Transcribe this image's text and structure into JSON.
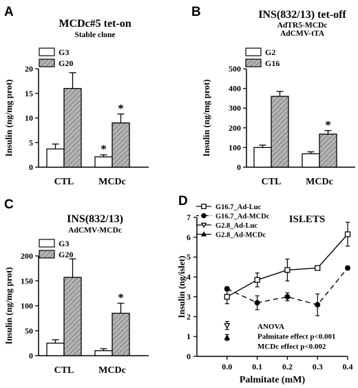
{
  "chart_data": [
    {
      "type": "bar",
      "panel": "A",
      "title": "MCDc#5 tet-on",
      "subtitle": "Stable clone",
      "ylabel": "Insulin (ng/mg prot)",
      "ylim": [
        0,
        20
      ],
      "yticks": [
        0,
        5,
        10,
        15,
        20
      ],
      "categories": [
        "CTL",
        "MCDc"
      ],
      "legend_position": "top-left",
      "series": [
        {
          "name": "G3",
          "color": "#ffffff",
          "pattern": "none",
          "values": [
            3.7,
            2.1
          ],
          "errors": [
            1.0,
            0.4
          ],
          "significant": [
            false,
            true
          ]
        },
        {
          "name": "G20",
          "color": "#a8a8a8",
          "pattern": "hatch",
          "values": [
            16.0,
            9.0
          ],
          "errors": [
            3.2,
            1.8
          ],
          "significant": [
            false,
            true
          ]
        }
      ],
      "significance_marker": "*"
    },
    {
      "type": "bar",
      "panel": "B",
      "title": "INS(832/13) tet-off",
      "subtitle_lines": [
        "AdTR5-MCDc",
        "AdCMV-tTA"
      ],
      "ylabel": "Insulin (ng/mg prot)",
      "ylim": [
        0,
        500
      ],
      "yticks": [
        0,
        100,
        200,
        300,
        400,
        500
      ],
      "categories": [
        "CTL",
        "MCDc"
      ],
      "legend_position": "top-left",
      "series": [
        {
          "name": "G2",
          "color": "#ffffff",
          "pattern": "none",
          "values": [
            100,
            68
          ],
          "errors": [
            12,
            10
          ],
          "significant": [
            false,
            false
          ]
        },
        {
          "name": "G16",
          "color": "#a8a8a8",
          "pattern": "hatch",
          "values": [
            360,
            168
          ],
          "errors": [
            25,
            18
          ],
          "significant": [
            false,
            true
          ]
        }
      ],
      "significance_marker": "*"
    },
    {
      "type": "bar",
      "panel": "C",
      "title": "INS(832/13)",
      "subtitle": "AdCMV-MCDc",
      "ylabel": "Insulin (ng/mg prot)",
      "ylim": [
        0,
        200
      ],
      "yticks": [
        0,
        50,
        100,
        150,
        200
      ],
      "categories": [
        "CTL",
        "MCDc"
      ],
      "legend_position": "top-left",
      "series": [
        {
          "name": "G3",
          "color": "#ffffff",
          "pattern": "none",
          "values": [
            25,
            10
          ],
          "errors": [
            7,
            4
          ],
          "significant": [
            false,
            false
          ]
        },
        {
          "name": "G20",
          "color": "#a8a8a8",
          "pattern": "hatch",
          "values": [
            157,
            85
          ],
          "errors": [
            37,
            20
          ],
          "significant": [
            false,
            true
          ]
        }
      ],
      "significance_marker": "*"
    },
    {
      "type": "line",
      "panel": "D",
      "title": "ISLETS",
      "xlabel": "Palmitate (mM)",
      "ylabel": "Insulin (ng/islet)",
      "xlim": [
        -0.1,
        0.4
      ],
      "xticks": [
        0.0,
        0.1,
        0.2,
        0.3,
        0.4
      ],
      "xtick_labels": [
        "0.0",
        "0.1",
        "0.2",
        "0.3",
        "0.4"
      ],
      "ylim": [
        0,
        7
      ],
      "yticks": [
        0,
        1,
        2,
        3,
        4,
        5,
        6,
        7
      ],
      "legend_position": "top-left",
      "series": [
        {
          "name": "G16.7_Ad-Luc",
          "marker": "open-square",
          "line": "solid",
          "x": [
            0.0,
            0.1,
            0.2,
            0.3,
            0.4
          ],
          "y": [
            3.0,
            3.85,
            4.35,
            4.45,
            6.15
          ],
          "errors": [
            0.35,
            0.35,
            0.55,
            0.1,
            0.6
          ]
        },
        {
          "name": "G16.7_Ad-MCDc",
          "marker": "filled-circle",
          "line": "dashed",
          "x": [
            0.0,
            0.1,
            0.2,
            0.3,
            0.4
          ],
          "y": [
            3.4,
            2.7,
            3.0,
            2.6,
            4.45
          ],
          "errors": [
            0.1,
            0.35,
            0.2,
            0.55,
            0.1
          ]
        },
        {
          "name": "G2.8_Ad-Luc",
          "marker": "open-triangle-down",
          "line": "none",
          "x": [
            0.0
          ],
          "y": [
            1.55
          ],
          "errors": [
            0.2
          ]
        },
        {
          "name": "G2.8_Ad-MCDc",
          "marker": "filled-triangle-up",
          "line": "none",
          "x": [
            0.0
          ],
          "y": [
            0.95
          ],
          "errors": [
            0.15
          ]
        }
      ],
      "annotation_lines": [
        "ANOVA",
        "Palmitate effect p<0.001",
        "MCDc effect p<0.002"
      ]
    }
  ],
  "panel_labels": [
    "A",
    "B",
    "C",
    "D"
  ]
}
